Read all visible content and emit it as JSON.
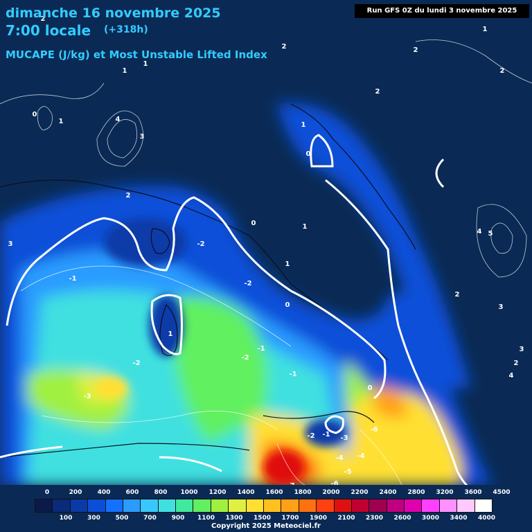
{
  "header": {
    "date": "dimanche 16 novembre 2025",
    "time": "7:00 locale",
    "offset": "(+318h)",
    "parameter": "MUCAPE (J/kg) et Most Unstable Lifted Index",
    "run": "Run GFS 0Z du lundi 3 novembre 2025"
  },
  "legend": {
    "top_labels": [
      "0",
      "200",
      "400",
      "600",
      "800",
      "1000",
      "1200",
      "1400",
      "1600",
      "1800",
      "2000",
      "2200",
      "2400",
      "2800",
      "3200",
      "3600",
      "4500"
    ],
    "bottom_labels": [
      "100",
      "300",
      "500",
      "700",
      "900",
      "1100",
      "1300",
      "1500",
      "1700",
      "1900",
      "2100",
      "2300",
      "2600",
      "3000",
      "3400",
      "4000"
    ],
    "colors": [
      "#0b1a4a",
      "#0a2a7a",
      "#0a3aa8",
      "#0a4fd8",
      "#1470ff",
      "#2a9cff",
      "#38c8ff",
      "#40e0e0",
      "#40e8a0",
      "#60f060",
      "#a0f040",
      "#e0f040",
      "#ffe030",
      "#ffc020",
      "#ffa018",
      "#ff7010",
      "#ff4010",
      "#e01010",
      "#c00030",
      "#a00050",
      "#c00080",
      "#e000b0",
      "#ff40ff",
      "#ff90ff",
      "#ffc8ff",
      "#ffffff"
    ]
  },
  "contour_labels": [
    {
      "v": "2"
    },
    {
      "v": "2"
    },
    {
      "v": "2"
    },
    {
      "v": "1"
    },
    {
      "v": "1"
    },
    {
      "v": "1"
    },
    {
      "v": "2"
    },
    {
      "v": "2"
    },
    {
      "v": "0"
    },
    {
      "v": "1"
    },
    {
      "v": "4"
    },
    {
      "v": "3"
    },
    {
      "v": "2"
    },
    {
      "v": "3"
    },
    {
      "v": "0"
    },
    {
      "v": "-2"
    },
    {
      "v": "-1"
    },
    {
      "v": "-2"
    },
    {
      "v": "0"
    },
    {
      "v": "1"
    },
    {
      "v": "-3"
    },
    {
      "v": "-2"
    },
    {
      "v": "-2"
    },
    {
      "v": "-1"
    },
    {
      "v": "-1"
    },
    {
      "v": "0"
    },
    {
      "v": "-1"
    },
    {
      "v": "-2"
    },
    {
      "v": "-3"
    },
    {
      "v": "-4"
    },
    {
      "v": "-5"
    },
    {
      "v": "-6"
    },
    {
      "v": "-7"
    },
    {
      "v": "-6"
    },
    {
      "v": "-4"
    },
    {
      "v": "0"
    },
    {
      "v": "1"
    },
    {
      "v": "1"
    },
    {
      "v": "1"
    },
    {
      "v": "2"
    },
    {
      "v": "3"
    },
    {
      "v": "4"
    },
    {
      "v": "5"
    },
    {
      "v": "2"
    },
    {
      "v": "3"
    },
    {
      "v": "4"
    }
  ],
  "copyright": "Copyright 2025 Meteociel.fr"
}
